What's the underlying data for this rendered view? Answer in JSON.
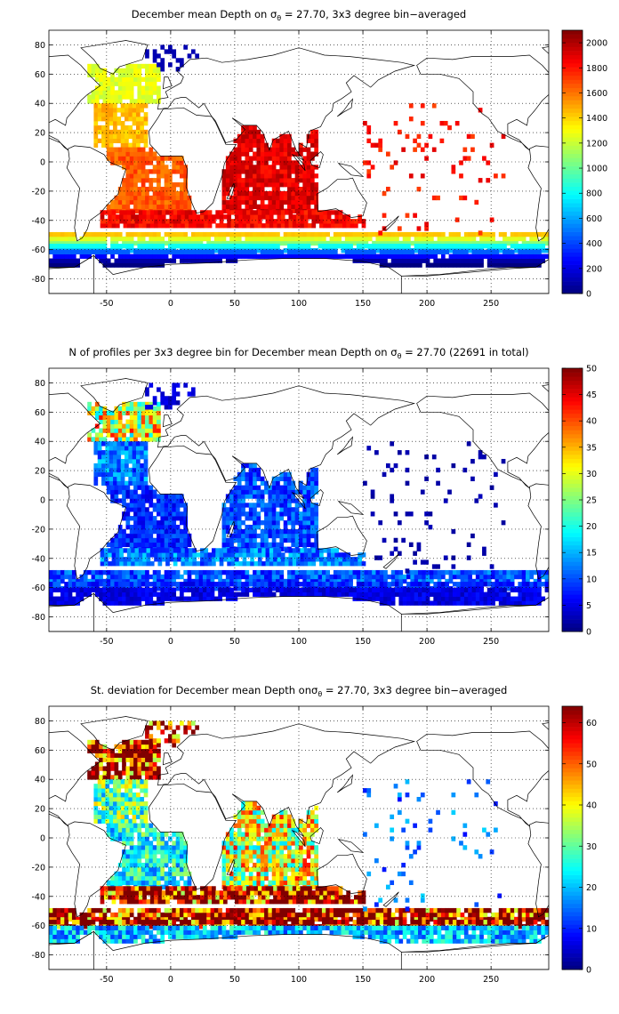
{
  "colormap": "jet",
  "chart_data": [
    {
      "type": "heatmap",
      "variable": "mean_depth",
      "title_pre": "December mean Depth on ",
      "title_sym": "σ",
      "title_sub": "θ",
      "title_post": " = 27.70, 3x3 degree bin−averaged",
      "xlabel": "",
      "ylabel": "",
      "xlim": [
        -95,
        295
      ],
      "ylim": [
        -90,
        90
      ],
      "xticks": [
        -50,
        0,
        50,
        100,
        150,
        200,
        250
      ],
      "yticks": [
        80,
        60,
        40,
        20,
        0,
        -20,
        -40,
        -60,
        -80
      ],
      "xtick_labels": [
        "-50",
        "0",
        "50",
        "100",
        "150",
        "200",
        "250"
      ],
      "ytick_labels": [
        "80",
        "60",
        "40",
        "20",
        "0",
        "-20",
        "-40",
        "-60",
        "-80"
      ],
      "grid": true,
      "colorbar": {
        "min": 0,
        "max": 2100,
        "ticks": [
          0,
          200,
          400,
          600,
          800,
          1000,
          1200,
          1400,
          1600,
          1800,
          2000
        ],
        "tick_labels": [
          "0",
          "200",
          "400",
          "600",
          "800",
          "1000",
          "1200",
          "1400",
          "1600",
          "1800",
          "2000"
        ]
      },
      "bin_size_deg": 3,
      "regions": [
        {
          "name_hint": "N Atlantic subpolar",
          "lon": [
            -65,
            -10
          ],
          "lat": [
            40,
            65
          ],
          "value": 1250
        },
        {
          "name_hint": "N Atlantic subtropical",
          "lon": [
            -60,
            -20
          ],
          "lat": [
            10,
            40
          ],
          "value": 1450
        },
        {
          "name_hint": "S Atlantic",
          "lon": [
            -50,
            15
          ],
          "lat": [
            -35,
            10
          ],
          "value": 1650
        },
        {
          "name_hint": "Indian Ocean",
          "lon": [
            40,
            115
          ],
          "lat": [
            -35,
            25
          ],
          "value": 1900
        },
        {
          "name_hint": "S Atlantic/Indian frontal",
          "lon": [
            -55,
            150
          ],
          "lat": [
            -45,
            -35
          ],
          "value": 1850
        },
        {
          "name_hint": "ACC northern flank",
          "lon": [
            -95,
            295
          ],
          "lat": [
            -57,
            -48
          ],
          "value": 1300
        },
        {
          "name_hint": "ACC transition",
          "lon": [
            -95,
            295
          ],
          "lat": [
            -62,
            -57
          ],
          "value": 700
        },
        {
          "name_hint": "ACC southern flank",
          "lon": [
            -95,
            295
          ],
          "lat": [
            -72,
            -62
          ],
          "value": 150
        },
        {
          "name_hint": "Nordic seas",
          "lon": [
            -20,
            20
          ],
          "lat": [
            62,
            80
          ],
          "value": 100
        },
        {
          "name_hint": "Pacific sparse",
          "lon": [
            150,
            260
          ],
          "lat": [
            -50,
            40
          ],
          "value": 1800
        }
      ]
    },
    {
      "type": "heatmap",
      "variable": "profile_count",
      "title_pre": "N of profiles per 3x3 degree bin for December mean Depth on ",
      "title_sym": "σ",
      "title_sub": "θ",
      "title_post": " = 27.70 (22691 in total)",
      "total_profiles": 22691,
      "xlabel": "",
      "ylabel": "",
      "xlim": [
        -95,
        295
      ],
      "ylim": [
        -90,
        90
      ],
      "xticks": [
        -50,
        0,
        50,
        100,
        150,
        200,
        250
      ],
      "yticks": [
        80,
        60,
        40,
        20,
        0,
        -20,
        -40,
        -60,
        -80
      ],
      "xtick_labels": [
        "-50",
        "0",
        "50",
        "100",
        "150",
        "200",
        "250"
      ],
      "ytick_labels": [
        "80",
        "60",
        "40",
        "20",
        "0",
        "-20",
        "-40",
        "-60",
        "-80"
      ],
      "grid": true,
      "colorbar": {
        "min": 0,
        "max": 50,
        "ticks": [
          0,
          5,
          10,
          15,
          20,
          25,
          30,
          35,
          40,
          45,
          50
        ],
        "tick_labels": [
          "0",
          "5",
          "10",
          "15",
          "20",
          "25",
          "30",
          "35",
          "40",
          "45",
          "50"
        ]
      },
      "bin_size_deg": 3,
      "regions": [
        {
          "name_hint": "N Atlantic subpolar",
          "lon": [
            -65,
            -10
          ],
          "lat": [
            40,
            65
          ],
          "value": 30
        },
        {
          "name_hint": "N Atlantic subtropical",
          "lon": [
            -60,
            -20
          ],
          "lat": [
            10,
            40
          ],
          "value": 12
        },
        {
          "name_hint": "S Atlantic",
          "lon": [
            -50,
            15
          ],
          "lat": [
            -35,
            10
          ],
          "value": 8
        },
        {
          "name_hint": "Indian Ocean",
          "lon": [
            40,
            115
          ],
          "lat": [
            -35,
            25
          ],
          "value": 10
        },
        {
          "name_hint": "S Atlantic/Indian frontal",
          "lon": [
            -55,
            150
          ],
          "lat": [
            -45,
            -35
          ],
          "value": 12
        },
        {
          "name_hint": "ACC northern flank",
          "lon": [
            -95,
            295
          ],
          "lat": [
            -57,
            -48
          ],
          "value": 10
        },
        {
          "name_hint": "ACC transition",
          "lon": [
            -95,
            295
          ],
          "lat": [
            -62,
            -57
          ],
          "value": 8
        },
        {
          "name_hint": "ACC southern flank",
          "lon": [
            -95,
            295
          ],
          "lat": [
            -72,
            -62
          ],
          "value": 5
        },
        {
          "name_hint": "Nordic seas",
          "lon": [
            -20,
            20
          ],
          "lat": [
            62,
            80
          ],
          "value": 4
        },
        {
          "name_hint": "Pacific sparse",
          "lon": [
            150,
            260
          ],
          "lat": [
            -50,
            40
          ],
          "value": 2
        }
      ]
    },
    {
      "type": "heatmap",
      "variable": "std_dev",
      "title_pre": "St. deviation for December mean Depth on",
      "title_sym": "σ",
      "title_sub": "θ",
      "title_post": " = 27.70, 3x3 degree bin−averaged",
      "xlabel": "",
      "ylabel": "",
      "xlim": [
        -95,
        295
      ],
      "ylim": [
        -90,
        90
      ],
      "xticks": [
        -50,
        0,
        50,
        100,
        150,
        200,
        250
      ],
      "yticks": [
        80,
        60,
        40,
        20,
        0,
        -20,
        -40,
        -60,
        -80
      ],
      "xtick_labels": [
        "-50",
        "0",
        "50",
        "100",
        "150",
        "200",
        "250"
      ],
      "ytick_labels": [
        "80",
        "60",
        "40",
        "20",
        "0",
        "-20",
        "-40",
        "-60",
        "-80"
      ],
      "grid": true,
      "colorbar": {
        "min": 0,
        "max": 64,
        "ticks": [
          0,
          10,
          20,
          30,
          40,
          50,
          60
        ],
        "tick_labels": [
          "0",
          "10",
          "20",
          "30",
          "40",
          "50",
          "60"
        ]
      },
      "bin_size_deg": 3,
      "regions": [
        {
          "name_hint": "N Atlantic subpolar",
          "lon": [
            -65,
            -10
          ],
          "lat": [
            40,
            65
          ],
          "value": 62
        },
        {
          "name_hint": "N Atlantic subtropical",
          "lon": [
            -60,
            -20
          ],
          "lat": [
            10,
            40
          ],
          "value": 30
        },
        {
          "name_hint": "S Atlantic",
          "lon": [
            -50,
            15
          ],
          "lat": [
            -35,
            10
          ],
          "value": 25
        },
        {
          "name_hint": "Indian Ocean",
          "lon": [
            40,
            115
          ],
          "lat": [
            -35,
            25
          ],
          "value": 38
        },
        {
          "name_hint": "S Atlantic/Indian frontal",
          "lon": [
            -55,
            150
          ],
          "lat": [
            -45,
            -35
          ],
          "value": 60
        },
        {
          "name_hint": "ACC northern flank",
          "lon": [
            -95,
            295
          ],
          "lat": [
            -57,
            -48
          ],
          "value": 63
        },
        {
          "name_hint": "ACC transition",
          "lon": [
            -95,
            295
          ],
          "lat": [
            -62,
            -57
          ],
          "value": 63
        },
        {
          "name_hint": "ACC southern flank",
          "lon": [
            -95,
            295
          ],
          "lat": [
            -72,
            -62
          ],
          "value": 20
        },
        {
          "name_hint": "Nordic seas",
          "lon": [
            -20,
            20
          ],
          "lat": [
            62,
            80
          ],
          "value": 60
        },
        {
          "name_hint": "Pacific sparse",
          "lon": [
            150,
            260
          ],
          "lat": [
            -50,
            40
          ],
          "value": 15
        }
      ]
    }
  ]
}
